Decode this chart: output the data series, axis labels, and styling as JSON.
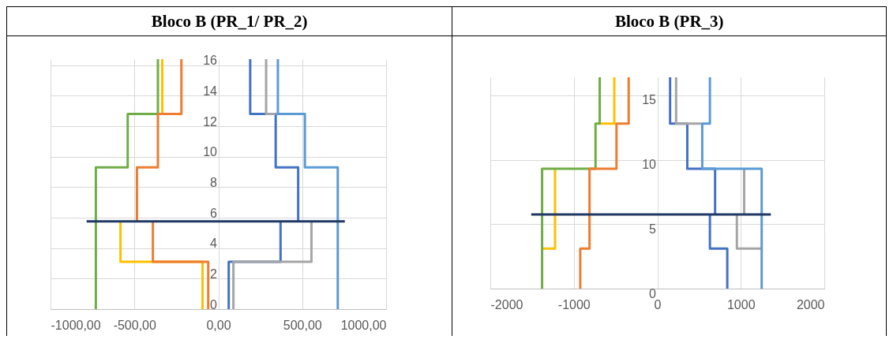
{
  "chart_data": [
    {
      "type": "line",
      "title": "Bloco B (PR_1/ PR_2)",
      "xlim": [
        -1000,
        1000
      ],
      "xticks": [
        {
          "value": -1000,
          "label": "-1000,00"
        },
        {
          "value": -500,
          "label": "-500,00"
        },
        {
          "value": 0,
          "label": "0,00"
        },
        {
          "value": 500,
          "label": "500,00"
        },
        {
          "value": 1000,
          "label": "1000,00"
        }
      ],
      "ylim": [
        0,
        16.4
      ],
      "yticks": [
        0,
        2,
        4,
        6,
        8,
        10,
        12,
        14,
        16
      ],
      "grid": true,
      "line_style": "solid",
      "marker": "none",
      "series": [
        {
          "color": "#70ad47",
          "x": [
            -730,
            -730,
            -540,
            -540,
            -360,
            -360
          ],
          "values": [
            0,
            9.3,
            9.3,
            12.8,
            12.8,
            16.4
          ]
        },
        {
          "color": "#ffc000",
          "x": [
            -94,
            -94,
            -583,
            -583,
            null,
            -360,
            -334,
            -334
          ],
          "values": [
            0,
            3.1,
            3.1,
            5.7,
            null,
            12.8,
            12.8,
            16.4
          ]
        },
        {
          "color": "#ed7d31",
          "x": [
            -60,
            -60,
            -390,
            -390,
            null,
            -485,
            -485,
            -360,
            -360,
            -220,
            -220
          ],
          "values": [
            0,
            3.1,
            3.1,
            5.7,
            null,
            5.7,
            9.3,
            9.3,
            12.8,
            12.8,
            16.4
          ]
        },
        {
          "color": "#4472c4",
          "x": [
            62,
            62,
            371,
            371,
            null,
            476,
            476,
            342,
            342,
            190,
            190
          ],
          "values": [
            0,
            3.1,
            3.1,
            5.7,
            null,
            5.7,
            9.3,
            9.3,
            12.8,
            12.8,
            16.4
          ]
        },
        {
          "color": "#a5a5a5",
          "x": [
            90,
            90,
            555,
            555,
            null,
            342,
            285,
            285
          ],
          "values": [
            0,
            3.1,
            3.1,
            5.7,
            null,
            12.8,
            12.8,
            16.4
          ]
        },
        {
          "color": "#5b9bd5",
          "x": [
            712,
            712,
            516,
            516,
            355,
            355
          ],
          "values": [
            0,
            9.3,
            9.3,
            12.8,
            12.8,
            16.4
          ]
        },
        {
          "color": "#203864",
          "x": [
            -785,
            754
          ],
          "values": [
            5.75,
            5.75
          ]
        }
      ]
    },
    {
      "type": "line",
      "title": "Bloco B (PR_3)",
      "xlim": [
        -2000,
        2000
      ],
      "xticks": [
        -2000,
        -1000,
        0,
        1000,
        2000
      ],
      "ylim": [
        0,
        16.4
      ],
      "yticks": [
        0,
        5,
        10,
        15
      ],
      "grid": true,
      "line_style": "solid",
      "marker": "none",
      "series": [
        {
          "color": "#ffc000",
          "x": [
            -1380,
            -1225,
            -1225,
            null,
            -690,
            -515,
            -515
          ],
          "values": [
            3.1,
            3.1,
            9.3,
            null,
            12.8,
            12.8,
            16.4
          ]
        },
        {
          "color": "#70ad47",
          "x": [
            -1380,
            -1380,
            -740,
            -740,
            -690,
            -690
          ],
          "values": [
            0,
            9.3,
            9.3,
            12.8,
            12.8,
            16.4
          ]
        },
        {
          "color": "#ed7d31",
          "x": [
            -923,
            -923,
            -812,
            -812,
            -489,
            -489,
            -343,
            -343
          ],
          "values": [
            0,
            3.1,
            3.1,
            9.3,
            9.3,
            12.8,
            12.8,
            16.4
          ]
        },
        {
          "color": "#4472c4",
          "x": [
            838,
            838,
            630,
            630,
            null,
            692,
            692,
            359,
            359,
            153,
            153
          ],
          "values": [
            0,
            3.1,
            3.1,
            5.7,
            null,
            5.7,
            9.3,
            9.3,
            12.8,
            12.8,
            16.4
          ]
        },
        {
          "color": "#a5a5a5",
          "x": [
            1250,
            953,
            953,
            null,
            1040,
            1040,
            null,
            530,
            225,
            225
          ],
          "values": [
            3.1,
            3.1,
            5.7,
            null,
            5.7,
            9.3,
            null,
            12.8,
            12.8,
            16.4
          ]
        },
        {
          "color": "#5b9bd5",
          "x": [
            1250,
            1250,
            538,
            538,
            630,
            630
          ],
          "values": [
            0,
            9.3,
            9.3,
            12.8,
            12.8,
            16.4
          ]
        },
        {
          "color": "#203864",
          "x": [
            -1510,
            1360
          ],
          "values": [
            5.75,
            5.75
          ]
        }
      ]
    }
  ]
}
